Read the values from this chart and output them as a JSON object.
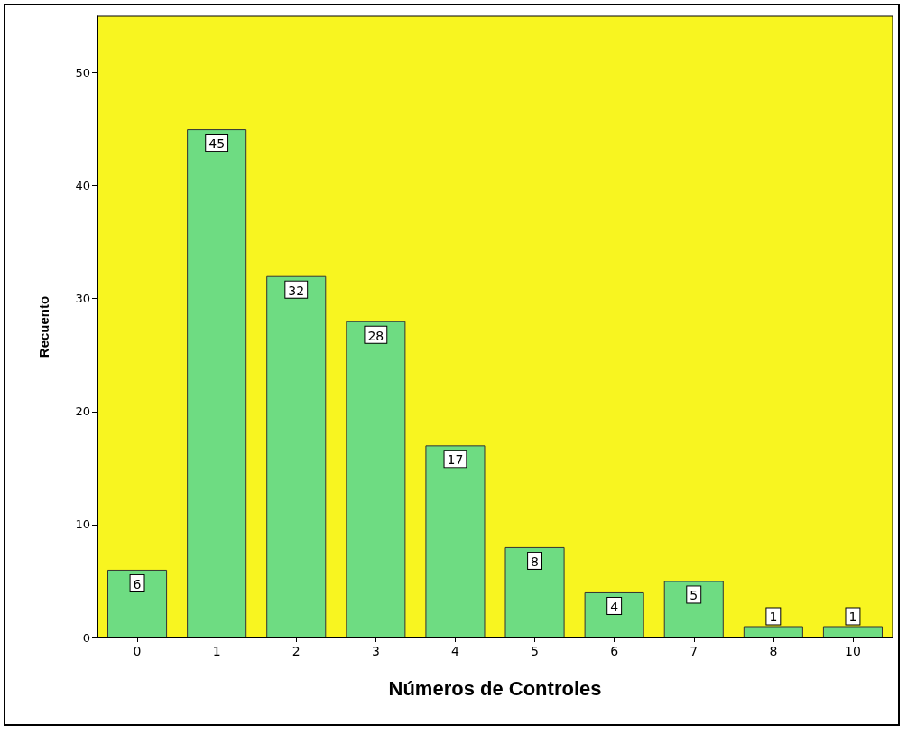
{
  "chart_data": {
    "type": "bar",
    "xlabel": "Números de Controles",
    "ylabel": "Recuento",
    "categories": [
      "0",
      "1",
      "2",
      "3",
      "4",
      "5",
      "6",
      "7",
      "8",
      "10"
    ],
    "values": [
      6,
      45,
      32,
      28,
      17,
      8,
      4,
      5,
      1,
      1
    ],
    "color": "#6edc82",
    "ylim": [
      0,
      55
    ],
    "yticks": [
      0,
      10,
      20,
      30,
      40,
      50
    ],
    "grid": false,
    "data_labels": true
  }
}
